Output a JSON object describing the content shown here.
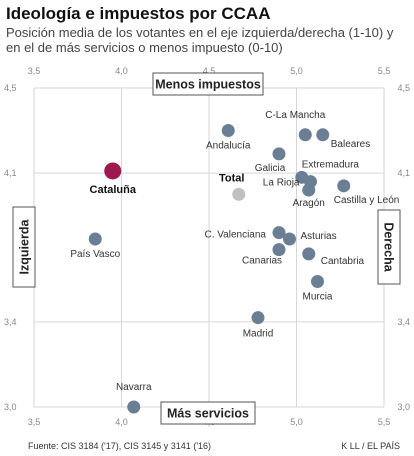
{
  "title": "Ideología e impuestos por CCAA",
  "subtitle": "Posición media de los votantes en el eje izquierda/derecha (1-10) y en el de más servicios o menos impuesto (0-10)",
  "footer": {
    "source": "Fuente: CIS 3184 ('17), CIS 3145 y 3141 ('16)",
    "credit": "K LL / EL PAÍS"
  },
  "colors": {
    "default_point": "#6b7f94",
    "highlight_point": "#a01850",
    "total_point": "#c0c0c0",
    "grid": "#d6d6d6"
  },
  "chart_data": {
    "type": "scatter",
    "xlim": [
      3.5,
      5.5
    ],
    "ylim": [
      3.0,
      4.5
    ],
    "x_ticks": [
      "3,5",
      "4,0",
      "4,5",
      "5,0",
      "5,5"
    ],
    "y_ticks": [
      "3,0",
      "3,4",
      "4,1",
      "4,5"
    ],
    "x_tick_values": [
      3.5,
      4.0,
      4.5,
      5.0,
      5.5
    ],
    "y_tick_values": [
      3.0,
      3.4,
      4.1,
      4.5
    ],
    "axis_labels": {
      "top": "Menos impuestos",
      "bottom": "Más servicios",
      "left": "Izquierda",
      "right": "Derecha"
    },
    "grid": true,
    "points": [
      {
        "label": "C-La Mancha",
        "x": 5.05,
        "y": 4.28,
        "style": "default"
      },
      {
        "label": "Baleares",
        "x": 5.15,
        "y": 4.28,
        "style": "default"
      },
      {
        "label": "Andalucía",
        "x": 4.61,
        "y": 4.3,
        "style": "default"
      },
      {
        "label": "Galicia",
        "x": 4.9,
        "y": 4.19,
        "style": "default"
      },
      {
        "label": "Cataluña",
        "x": 3.95,
        "y": 4.11,
        "style": "highlight"
      },
      {
        "label": "Extremadura",
        "x": 5.03,
        "y": 4.08,
        "style": "default"
      },
      {
        "label": "La Rioja",
        "x": 5.08,
        "y": 4.06,
        "style": "default"
      },
      {
        "label": "Castilla y León",
        "x": 5.27,
        "y": 4.04,
        "style": "default"
      },
      {
        "label": "Aragón",
        "x": 5.07,
        "y": 4.02,
        "style": "default"
      },
      {
        "label": "Total",
        "x": 4.67,
        "y": 4.0,
        "style": "total"
      },
      {
        "label": "C. Valenciana",
        "x": 4.9,
        "y": 3.82,
        "style": "default"
      },
      {
        "label": "Asturias",
        "x": 4.96,
        "y": 3.79,
        "style": "default"
      },
      {
        "label": "País Vasco",
        "x": 3.85,
        "y": 3.79,
        "style": "default"
      },
      {
        "label": "Canarias",
        "x": 4.9,
        "y": 3.74,
        "style": "default"
      },
      {
        "label": "Cantabria",
        "x": 5.07,
        "y": 3.72,
        "style": "default"
      },
      {
        "label": "Murcia",
        "x": 5.12,
        "y": 3.59,
        "style": "default"
      },
      {
        "label": "Madrid",
        "x": 4.78,
        "y": 3.42,
        "style": "default"
      },
      {
        "label": "Navarra",
        "x": 4.07,
        "y": 3.0,
        "style": "default"
      }
    ]
  }
}
